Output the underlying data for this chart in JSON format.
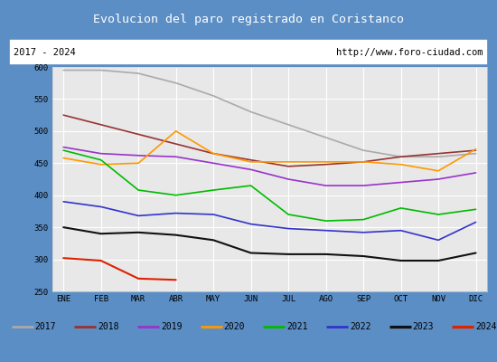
{
  "title": "Evolucion del paro registrado en Coristanco",
  "title_bg": "#5b8ec4",
  "subtitle_left": "2017 - 2024",
  "subtitle_right": "http://www.foro-ciudad.com",
  "months": [
    "ENE",
    "FEB",
    "MAR",
    "ABR",
    "MAY",
    "JUN",
    "JUL",
    "AGO",
    "SEP",
    "OCT",
    "NOV",
    "DIC"
  ],
  "ylim": [
    250,
    600
  ],
  "yticks": [
    250,
    300,
    350,
    400,
    450,
    500,
    550,
    600
  ],
  "series": {
    "2017": {
      "color": "#aaaaaa",
      "linewidth": 1.2,
      "values": [
        595,
        595,
        590,
        575,
        555,
        530,
        510,
        490,
        470,
        460,
        460,
        465
      ]
    },
    "2018": {
      "color": "#993333",
      "linewidth": 1.2,
      "values": [
        525,
        510,
        495,
        480,
        465,
        455,
        445,
        448,
        452,
        460,
        465,
        470
      ]
    },
    "2019": {
      "color": "#9933cc",
      "linewidth": 1.2,
      "values": [
        475,
        465,
        462,
        460,
        450,
        440,
        425,
        415,
        415,
        420,
        425,
        435
      ]
    },
    "2020": {
      "color": "#ff9900",
      "linewidth": 1.2,
      "values": [
        458,
        448,
        450,
        500,
        465,
        452,
        452,
        452,
        452,
        448,
        438,
        472
      ]
    },
    "2021": {
      "color": "#00bb00",
      "linewidth": 1.2,
      "values": [
        470,
        455,
        408,
        400,
        408,
        415,
        370,
        360,
        362,
        380,
        370,
        378
      ]
    },
    "2022": {
      "color": "#3333cc",
      "linewidth": 1.2,
      "values": [
        390,
        382,
        368,
        372,
        370,
        355,
        348,
        345,
        342,
        345,
        330,
        358
      ]
    },
    "2023": {
      "color": "#111111",
      "linewidth": 1.5,
      "values": [
        350,
        340,
        342,
        338,
        330,
        310,
        308,
        308,
        305,
        298,
        298,
        310
      ]
    },
    "2024": {
      "color": "#dd2200",
      "linewidth": 1.5,
      "values": [
        302,
        298,
        270,
        268,
        null,
        null,
        null,
        null,
        null,
        null,
        null,
        null
      ]
    }
  },
  "legend_order": [
    "2017",
    "2018",
    "2019",
    "2020",
    "2021",
    "2022",
    "2023",
    "2024"
  ],
  "border_color": "#5b8ec4",
  "plot_bg": "#e8e8e8",
  "grid_color": "#ffffff",
  "subplot_bg": "#ffffff"
}
